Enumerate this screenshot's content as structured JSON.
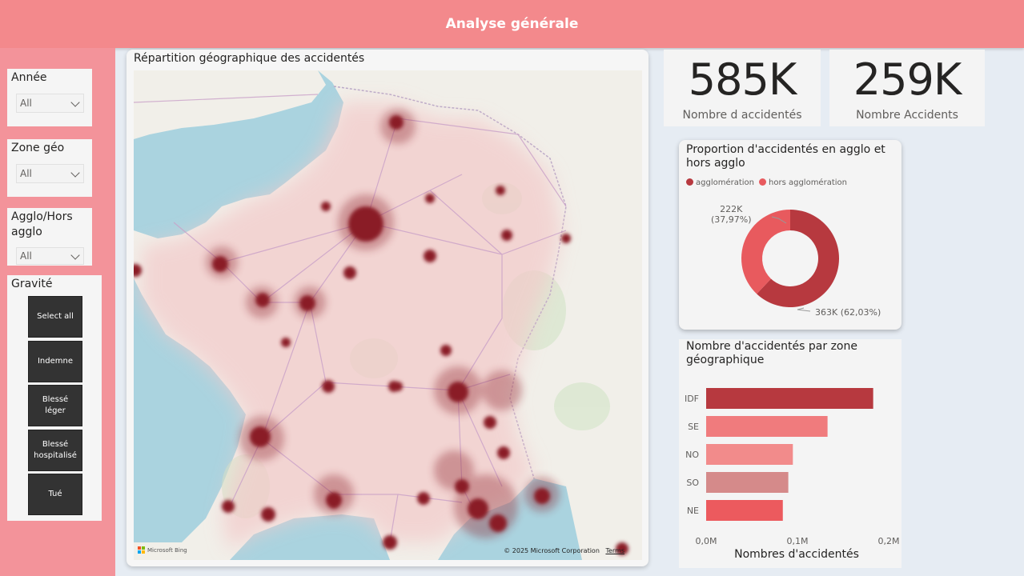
{
  "header": {
    "title": "Analyse générale"
  },
  "filters": {
    "annee": {
      "label": "Année",
      "value": "All"
    },
    "zone": {
      "label": "Zone géo",
      "value": "All"
    },
    "agglo": {
      "label": "Agglo/Hors agglo",
      "value": "All"
    },
    "gravite": {
      "label": "Gravité",
      "buttons": [
        "Select all",
        "Indemne",
        "Blessé léger",
        "Blessé hospitalisé",
        "Tué"
      ]
    }
  },
  "map": {
    "title": "Répartition géographique des accidentés",
    "logo": "Microsoft Bing",
    "copyright": "© 2025 Microsoft Corporation",
    "terms": "Terms"
  },
  "kpis": [
    {
      "value": "585K",
      "label": "Nombre d accidentés"
    },
    {
      "value": "259K",
      "label": "Nombre Accidents"
    }
  ],
  "donut": {
    "title": "Proportion d'accidentés en agglo et hors agglo",
    "legend": [
      {
        "name": "agglomération",
        "color": "#b7393f"
      },
      {
        "name": "hors agglomération",
        "color": "#e85a5e"
      }
    ],
    "label_hors": "222K",
    "label_hors_pct": "(37,97%)",
    "label_agglo": "363K (62,03%)"
  },
  "chart_data": {
    "type": "bar",
    "orientation": "horizontal",
    "title": "Nombre d'accidentés par zone géographique",
    "categories": [
      "IDF",
      "SE",
      "NO",
      "SO",
      "NE"
    ],
    "values": [
      0.183,
      0.133,
      0.095,
      0.09,
      0.084
    ],
    "colors": [
      "#b7393f",
      "#f07b7d",
      "#f28b8b",
      "#d58a8a",
      "#ec5a5e"
    ],
    "xlabel": "Nombres d'accidentés",
    "xticks": [
      "0,0M",
      "0,1M",
      "0,2M"
    ],
    "xlim": [
      0,
      0.2
    ],
    "unit": "M"
  }
}
